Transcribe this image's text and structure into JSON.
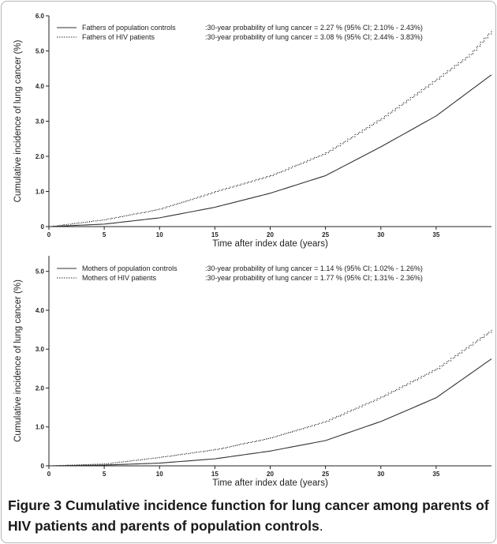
{
  "figure": {
    "label": "Figure 3",
    "caption_text": "Cumulative incidence function for lung cancer among parents of HIV patients and parents of population controls",
    "caption_end": "."
  },
  "chart_data": [
    {
      "type": "line",
      "xlabel": "Time after index date (years)",
      "ylabel": "Cumulative incidence of lung cancer (%)",
      "xlim": [
        0,
        40
      ],
      "ylim": [
        0,
        6
      ],
      "xticks": [
        0,
        5,
        10,
        15,
        20,
        25,
        30,
        35
      ],
      "xtick_labels": [
        "0",
        "5",
        "10",
        "15",
        "20",
        "25",
        "30",
        "35"
      ],
      "yticks": [
        0,
        1,
        2,
        3,
        4,
        5,
        6
      ],
      "ytick_labels": [
        "0",
        "1.0",
        "2.0",
        "3.0",
        "4.0",
        "5.0",
        "6.0"
      ],
      "legend_position": "top-left",
      "series": [
        {
          "name": "Fathers of population controls",
          "annotation": ":30-year probability of lung cancer = 2.27 % (95% CI; 2.10% - 2.43%)",
          "style": "solid",
          "x": [
            0,
            5,
            10,
            15,
            20,
            25,
            30,
            35,
            40
          ],
          "y": [
            0,
            0.07,
            0.25,
            0.55,
            0.95,
            1.45,
            2.27,
            3.15,
            4.32
          ]
        },
        {
          "name": "Fathers of HIV patients",
          "annotation": ":30-year probability of lung cancer = 3.08 % (95% CI; 2.44% - 3.83%)",
          "style": "dotted",
          "x": [
            0,
            5,
            10,
            15,
            20,
            25,
            30,
            35,
            38,
            40
          ],
          "y": [
            0,
            0.2,
            0.5,
            1.0,
            1.45,
            2.1,
            3.08,
            4.2,
            4.9,
            5.6
          ]
        }
      ]
    },
    {
      "type": "line",
      "xlabel": "Time after index date (years)",
      "ylabel": "Cumulative incidence of lung cancer (%)",
      "xlim": [
        0,
        40
      ],
      "ylim": [
        0,
        5.4
      ],
      "xticks": [
        0,
        5,
        10,
        15,
        20,
        25,
        30,
        35
      ],
      "xtick_labels": [
        "0",
        "5",
        "10",
        "15",
        "20",
        "25",
        "30",
        "35"
      ],
      "yticks": [
        0,
        1,
        2,
        3,
        4,
        5
      ],
      "ytick_labels": [
        "0",
        "1.0",
        "2.0",
        "3.0",
        "4.0",
        "5.0"
      ],
      "legend_position": "top-left",
      "series": [
        {
          "name": "Mothers of population controls",
          "annotation": ":30-year probability of lung cancer = 1.14 % (95% CI; 1.02% - 1.26%)",
          "style": "solid",
          "x": [
            0,
            5,
            10,
            15,
            20,
            25,
            30,
            35,
            40
          ],
          "y": [
            0,
            0.02,
            0.07,
            0.18,
            0.38,
            0.65,
            1.14,
            1.75,
            2.75
          ]
        },
        {
          "name": "Mothers of HIV patients",
          "annotation": ":30-year probability of lung cancer = 1.77 % (95% CI; 1.31% - 2.36%)",
          "style": "dotted",
          "x": [
            0,
            5,
            10,
            15,
            20,
            25,
            30,
            35,
            40
          ],
          "y": [
            0,
            0.05,
            0.22,
            0.42,
            0.72,
            1.15,
            1.77,
            2.5,
            3.5
          ]
        }
      ]
    }
  ]
}
